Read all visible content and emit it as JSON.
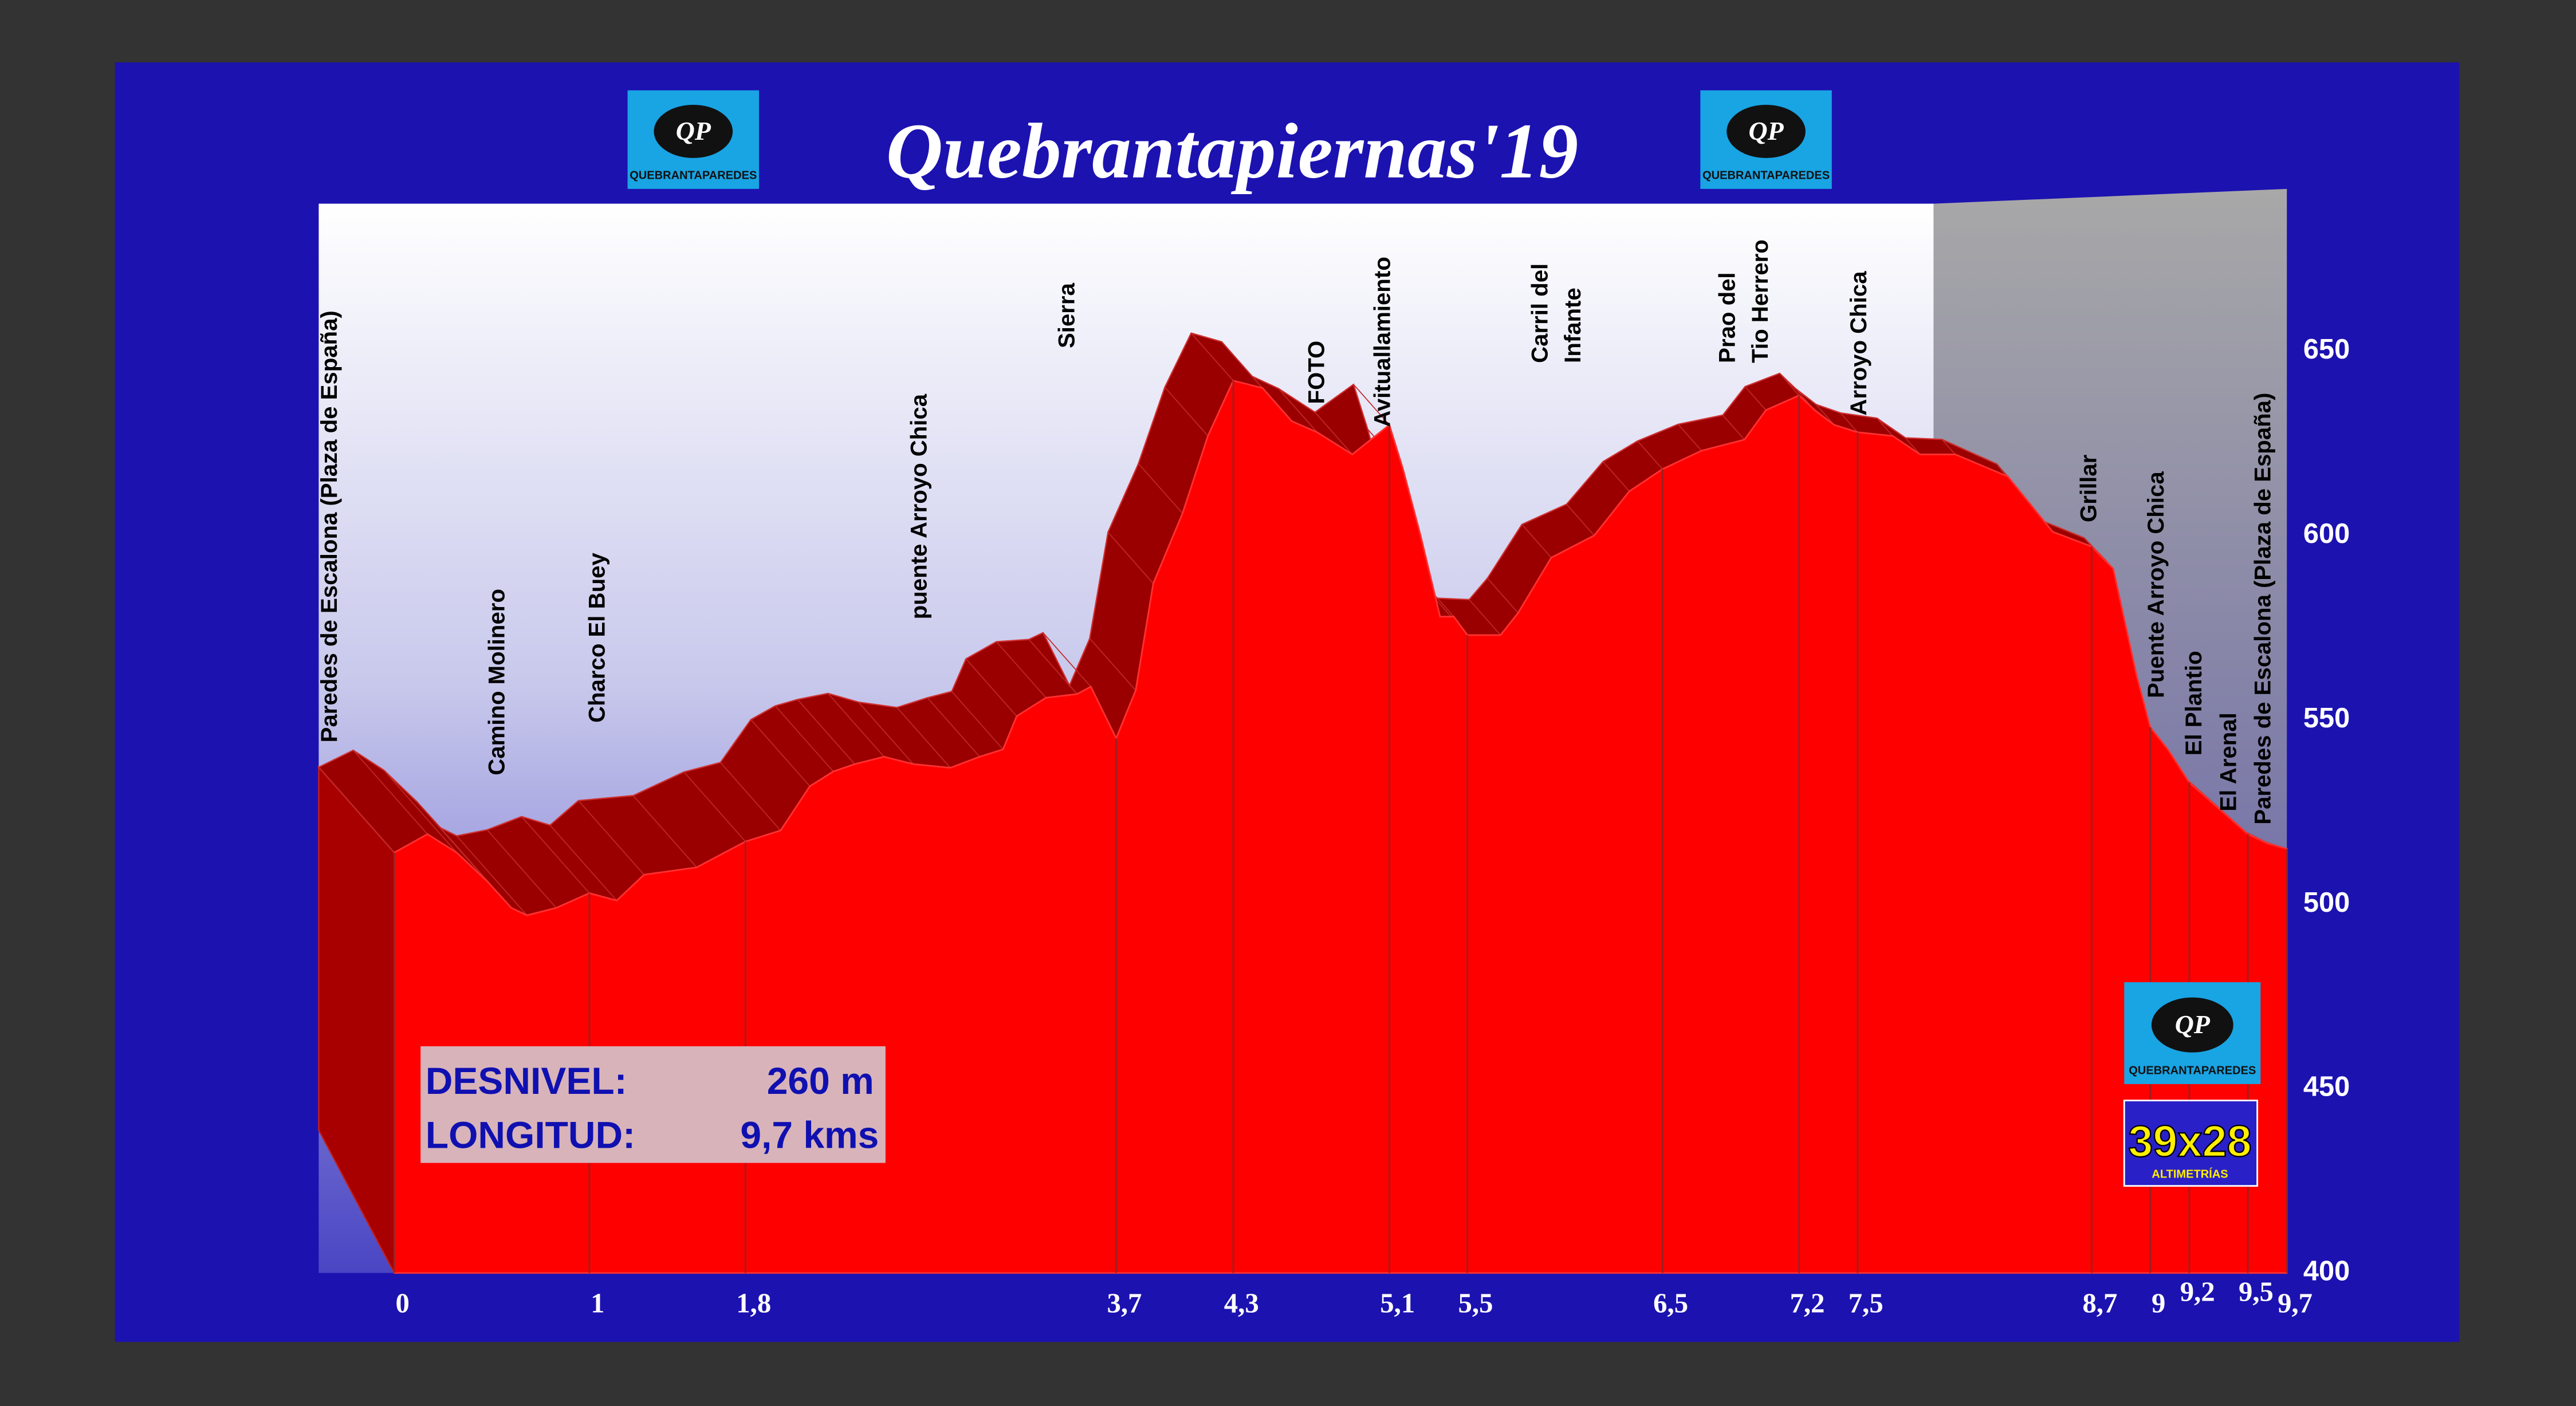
{
  "header": {
    "title": "Quebrantapiernas'19",
    "logo_text": "QP",
    "logo_caption": "QUEBRANTAPAREDES"
  },
  "badge": {
    "number": "39x28",
    "caption": "ALTIMETRÍAS"
  },
  "summary": {
    "rows": [
      [
        "DESNIVEL:",
        "260 m"
      ],
      [
        "LONGITUD:",
        "9,7 kms"
      ]
    ]
  },
  "chart_data": {
    "type": "area",
    "color": "#ff0000",
    "x": [
      0,
      0.17,
      0.32,
      0.48,
      0.6,
      0.68,
      0.83,
      1.0,
      1.14,
      1.28,
      1.55,
      1.8,
      1.98,
      2.13,
      2.25,
      2.36,
      2.51,
      2.66,
      2.85,
      3.0,
      3.12,
      3.19,
      3.34,
      3.5,
      3.57,
      3.7,
      3.8,
      3.89,
      4.04,
      4.17,
      4.3,
      4.45,
      4.6,
      4.73,
      4.91,
      5.1,
      5.17,
      5.26,
      5.36,
      5.43,
      5.5,
      5.67,
      5.76,
      5.93,
      6.15,
      6.33,
      6.5,
      6.7,
      6.92,
      7.03,
      7.2,
      7.28,
      7.38,
      7.5,
      7.68,
      7.82,
      8.0,
      8.27,
      8.5,
      8.7,
      8.81,
      8.93,
      9.0,
      9.09,
      9.2,
      9.5,
      9.6,
      9.7
    ],
    "values": [
      514,
      519,
      514,
      506,
      499,
      497,
      499,
      503,
      501,
      508,
      510,
      517,
      520,
      532,
      536,
      538,
      540,
      538,
      537,
      540,
      542,
      551,
      556,
      557,
      559,
      545,
      558,
      587,
      606,
      627,
      642,
      640,
      631,
      628,
      622,
      630,
      618,
      600,
      578,
      578,
      573,
      573,
      579,
      594,
      600,
      612,
      618,
      623,
      626,
      634,
      638,
      634,
      630,
      628,
      627,
      622,
      622,
      616,
      601,
      597,
      591,
      562,
      548,
      542,
      533,
      519,
      516.5,
      515
    ],
    "xlim": [
      0,
      9.7
    ],
    "ylim": [
      400,
      690
    ],
    "yticks": [
      400,
      450,
      500,
      550,
      600,
      650
    ],
    "xticks": [
      0,
      1,
      {
        "value": 1.8,
        "label": "1,8"
      },
      {
        "value": 3.7,
        "label": "3,7"
      },
      {
        "value": 4.3,
        "label": "4,3"
      },
      {
        "value": 5.1,
        "label": "5,1"
      },
      {
        "value": 5.5,
        "label": "5,5"
      },
      {
        "value": 6.5,
        "label": "6,5"
      },
      {
        "value": 7.2,
        "label": "7,2"
      },
      {
        "value": 7.5,
        "label": "7,5"
      },
      {
        "value": 8.7,
        "label": "8,7"
      },
      9,
      {
        "value": 9.2,
        "label": "9,2"
      },
      {
        "value": 9.5,
        "label": "9,5"
      },
      {
        "value": 9.7,
        "label": "9,7"
      }
    ],
    "annotations": [
      [
        "Paredes de Escalona (Plaza de España)"
      ],
      [
        "Camino Molinero"
      ],
      [
        "Charco El Buey"
      ],
      [
        "puente Arroyo Chica"
      ],
      [
        "Sierra"
      ],
      [
        "FOTO"
      ],
      [
        "Avituallamiento"
      ],
      [
        "Carril del",
        "Infante"
      ],
      [
        "Prao del",
        "Tio Herrero"
      ],
      [
        "Arroyo Chica"
      ],
      [
        "Grillar"
      ],
      [
        "Puente Arroyo Chica"
      ],
      [
        "El Plantio"
      ],
      [
        "El Arenal"
      ],
      [
        "Paredes de Escalona (Plaza de España)"
      ]
    ]
  }
}
